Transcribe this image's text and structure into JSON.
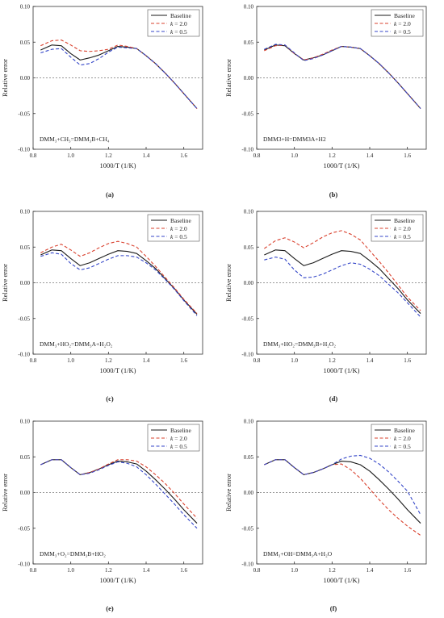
{
  "chart_data": [
    {
      "panel_label": "(a)",
      "type": "line",
      "annotation": "DMM₃+CH₃=DMM₃B+CH₄",
      "xlabel": "1000/T (1/K)",
      "ylabel": "Relative error",
      "xlim": [
        0.8,
        1.7
      ],
      "ylim": [
        -0.1,
        0.1
      ],
      "x_ticks": [
        "0.8",
        "1.0",
        "1.2",
        "1.4",
        "1.6"
      ],
      "y_ticks": [
        "-0.10",
        "-0.05",
        "0.00",
        "0.05",
        "0.10"
      ],
      "legend": "top-right",
      "zero_line": true,
      "series": [
        {
          "name": "Baseline",
          "color": "#1a1a1a",
          "dash": "solid",
          "x": [
            0.84,
            0.9,
            0.95,
            1.0,
            1.05,
            1.1,
            1.15,
            1.2,
            1.25,
            1.3,
            1.35,
            1.4,
            1.45,
            1.5,
            1.55,
            1.6,
            1.67
          ],
          "y": [
            0.039,
            0.046,
            0.045,
            0.034,
            0.025,
            0.028,
            0.032,
            0.038,
            0.044,
            0.043,
            0.041,
            0.031,
            0.02,
            0.007,
            -0.007,
            -0.022,
            -0.043
          ]
        },
        {
          "name": "k = 2.0",
          "color": "#d9412e",
          "dash": "dashed",
          "x": [
            0.84,
            0.9,
            0.95,
            1.0,
            1.05,
            1.1,
            1.15,
            1.2,
            1.25,
            1.3,
            1.35,
            1.4,
            1.45,
            1.5,
            1.55,
            1.6,
            1.67
          ],
          "y": [
            0.045,
            0.052,
            0.053,
            0.046,
            0.038,
            0.037,
            0.038,
            0.04,
            0.046,
            0.044,
            0.041,
            0.031,
            0.02,
            0.007,
            -0.007,
            -0.022,
            -0.043
          ]
        },
        {
          "name": "k = 0.5",
          "color": "#3446c8",
          "dash": "dashed",
          "x": [
            0.84,
            0.9,
            0.95,
            1.0,
            1.05,
            1.1,
            1.15,
            1.2,
            1.25,
            1.3,
            1.35,
            1.4,
            1.45,
            1.5,
            1.55,
            1.6,
            1.67
          ],
          "y": [
            0.035,
            0.04,
            0.041,
            0.029,
            0.018,
            0.02,
            0.027,
            0.036,
            0.043,
            0.042,
            0.041,
            0.031,
            0.02,
            0.007,
            -0.007,
            -0.022,
            -0.043
          ]
        }
      ]
    },
    {
      "panel_label": "(b)",
      "type": "line",
      "annotation": "DMM3+H=DMM3A+H2",
      "xlabel": "1000/T (1/K)",
      "ylabel": "Relative error",
      "xlim": [
        0.8,
        1.7
      ],
      "ylim": [
        -0.1,
        0.1
      ],
      "x_ticks": [
        "0.8",
        "1.0",
        "1.2",
        "1.4",
        "1.6"
      ],
      "y_ticks": [
        "-0.10",
        "-0.05",
        "0.00",
        "0.05",
        "0.10"
      ],
      "legend": "top-right",
      "zero_line": true,
      "series": [
        {
          "name": "Baseline",
          "color": "#1a1a1a",
          "dash": "solid",
          "x": [
            0.84,
            0.9,
            0.95,
            1.0,
            1.05,
            1.1,
            1.15,
            1.2,
            1.25,
            1.3,
            1.35,
            1.4,
            1.45,
            1.5,
            1.55,
            1.6,
            1.67
          ],
          "y": [
            0.039,
            0.046,
            0.045,
            0.034,
            0.025,
            0.028,
            0.032,
            0.038,
            0.044,
            0.043,
            0.041,
            0.031,
            0.02,
            0.007,
            -0.007,
            -0.022,
            -0.043
          ]
        },
        {
          "name": "k = 2.0",
          "color": "#d9412e",
          "dash": "dashed",
          "x": [
            0.84,
            0.9,
            0.95,
            1.0,
            1.05,
            1.1,
            1.15,
            1.2,
            1.25,
            1.3,
            1.35,
            1.4,
            1.45,
            1.5,
            1.55,
            1.6,
            1.67
          ],
          "y": [
            0.038,
            0.045,
            0.046,
            0.034,
            0.025,
            0.028,
            0.033,
            0.039,
            0.044,
            0.043,
            0.041,
            0.031,
            0.02,
            0.007,
            -0.007,
            -0.022,
            -0.043
          ]
        },
        {
          "name": "k = 0.5",
          "color": "#3446c8",
          "dash": "dashed",
          "x": [
            0.84,
            0.9,
            0.95,
            1.0,
            1.05,
            1.1,
            1.15,
            1.2,
            1.25,
            1.3,
            1.35,
            1.4,
            1.45,
            1.5,
            1.55,
            1.6,
            1.67
          ],
          "y": [
            0.04,
            0.047,
            0.046,
            0.035,
            0.024,
            0.027,
            0.032,
            0.038,
            0.044,
            0.043,
            0.041,
            0.031,
            0.02,
            0.007,
            -0.007,
            -0.022,
            -0.043
          ]
        }
      ]
    },
    {
      "panel_label": "(c)",
      "type": "line",
      "annotation": "DMM₃+HO₂=DMM₃A+H₂O₂",
      "xlabel": "1000/T (1/K)",
      "ylabel": "Relative error",
      "xlim": [
        0.8,
        1.7
      ],
      "ylim": [
        -0.1,
        0.1
      ],
      "x_ticks": [
        "0.8",
        "1.0",
        "1.2",
        "1.4",
        "1.6"
      ],
      "y_ticks": [
        "-0.10",
        "-0.05",
        "0.00",
        "0.05",
        "0.10"
      ],
      "legend": "top-right",
      "zero_line": true,
      "series": [
        {
          "name": "Baseline",
          "color": "#1a1a1a",
          "dash": "solid",
          "x": [
            0.84,
            0.9,
            0.95,
            1.0,
            1.05,
            1.1,
            1.15,
            1.2,
            1.25,
            1.3,
            1.35,
            1.4,
            1.45,
            1.5,
            1.55,
            1.6,
            1.67
          ],
          "y": [
            0.039,
            0.046,
            0.045,
            0.034,
            0.024,
            0.028,
            0.034,
            0.04,
            0.045,
            0.044,
            0.041,
            0.031,
            0.02,
            0.006,
            -0.008,
            -0.024,
            -0.044
          ]
        },
        {
          "name": "k = 2.0",
          "color": "#d9412e",
          "dash": "dashed",
          "x": [
            0.84,
            0.9,
            0.95,
            1.0,
            1.05,
            1.1,
            1.15,
            1.2,
            1.25,
            1.3,
            1.35,
            1.4,
            1.45,
            1.5,
            1.55,
            1.6,
            1.67
          ],
          "y": [
            0.042,
            0.05,
            0.054,
            0.046,
            0.037,
            0.042,
            0.049,
            0.055,
            0.058,
            0.055,
            0.05,
            0.037,
            0.023,
            0.008,
            -0.007,
            -0.023,
            -0.043
          ]
        },
        {
          "name": "k = 0.5",
          "color": "#3446c8",
          "dash": "dashed",
          "x": [
            0.84,
            0.9,
            0.95,
            1.0,
            1.05,
            1.1,
            1.15,
            1.2,
            1.25,
            1.3,
            1.35,
            1.4,
            1.45,
            1.5,
            1.55,
            1.6,
            1.67
          ],
          "y": [
            0.037,
            0.042,
            0.04,
            0.027,
            0.018,
            0.021,
            0.027,
            0.033,
            0.038,
            0.038,
            0.036,
            0.028,
            0.018,
            0.005,
            -0.009,
            -0.025,
            -0.046
          ]
        }
      ]
    },
    {
      "panel_label": "(d)",
      "type": "line",
      "annotation": "DMM₃+HO₂=DMM₃B+H₂O₂",
      "xlabel": "1000/T (1/K)",
      "ylabel": "Relative error",
      "xlim": [
        0.8,
        1.7
      ],
      "ylim": [
        -0.1,
        0.1
      ],
      "x_ticks": [
        "0.8",
        "1.0",
        "1.2",
        "1.4",
        "1.6"
      ],
      "y_ticks": [
        "-0.10",
        "-0.05",
        "0.00",
        "0.05",
        "0.10"
      ],
      "legend": "top-right",
      "zero_line": true,
      "series": [
        {
          "name": "Baseline",
          "color": "#1a1a1a",
          "dash": "solid",
          "x": [
            0.84,
            0.9,
            0.95,
            1.0,
            1.05,
            1.1,
            1.15,
            1.2,
            1.25,
            1.3,
            1.35,
            1.4,
            1.45,
            1.5,
            1.55,
            1.6,
            1.67
          ],
          "y": [
            0.039,
            0.046,
            0.045,
            0.034,
            0.024,
            0.028,
            0.034,
            0.04,
            0.045,
            0.044,
            0.041,
            0.031,
            0.02,
            0.006,
            -0.008,
            -0.024,
            -0.043
          ]
        },
        {
          "name": "k = 2.0",
          "color": "#d9412e",
          "dash": "dashed",
          "x": [
            0.84,
            0.9,
            0.95,
            1.0,
            1.05,
            1.1,
            1.15,
            1.2,
            1.25,
            1.3,
            1.35,
            1.4,
            1.45,
            1.5,
            1.55,
            1.6,
            1.67
          ],
          "y": [
            0.048,
            0.059,
            0.063,
            0.057,
            0.049,
            0.056,
            0.064,
            0.07,
            0.073,
            0.068,
            0.06,
            0.045,
            0.03,
            0.014,
            -0.003,
            -0.02,
            -0.039
          ]
        },
        {
          "name": "k = 0.5",
          "color": "#3446c8",
          "dash": "dashed",
          "x": [
            0.84,
            0.9,
            0.95,
            1.0,
            1.05,
            1.1,
            1.15,
            1.2,
            1.25,
            1.3,
            1.35,
            1.4,
            1.45,
            1.5,
            1.55,
            1.6,
            1.67
          ],
          "y": [
            0.032,
            0.036,
            0.033,
            0.018,
            0.007,
            0.008,
            0.012,
            0.018,
            0.024,
            0.028,
            0.026,
            0.019,
            0.01,
            -0.002,
            -0.014,
            -0.028,
            -0.048
          ]
        }
      ]
    },
    {
      "panel_label": "(e)",
      "type": "line",
      "annotation": "DMM₃+O₂=DMM₃B+HO₂",
      "xlabel": "1000/T (1/K)",
      "ylabel": "Relative error",
      "xlim": [
        0.8,
        1.7
      ],
      "ylim": [
        -0.1,
        0.1
      ],
      "x_ticks": [
        "0.8",
        "1.0",
        "1.2",
        "1.4",
        "1.6"
      ],
      "y_ticks": [
        "-0.10",
        "-0.05",
        "0.00",
        "0.05",
        "0.10"
      ],
      "legend": "top-right",
      "zero_line": true,
      "series": [
        {
          "name": "Baseline",
          "color": "#1a1a1a",
          "dash": "solid",
          "x": [
            0.84,
            0.9,
            0.95,
            1.0,
            1.05,
            1.1,
            1.15,
            1.2,
            1.25,
            1.3,
            1.35,
            1.4,
            1.45,
            1.5,
            1.55,
            1.6,
            1.67
          ],
          "y": [
            0.039,
            0.046,
            0.046,
            0.035,
            0.025,
            0.028,
            0.033,
            0.039,
            0.044,
            0.043,
            0.04,
            0.03,
            0.018,
            0.005,
            -0.009,
            -0.024,
            -0.043
          ]
        },
        {
          "name": "k = 2.0",
          "color": "#d9412e",
          "dash": "dashed",
          "x": [
            0.84,
            0.9,
            0.95,
            1.0,
            1.05,
            1.1,
            1.15,
            1.2,
            1.25,
            1.3,
            1.35,
            1.4,
            1.45,
            1.5,
            1.55,
            1.6,
            1.67
          ],
          "y": [
            0.039,
            0.046,
            0.046,
            0.035,
            0.025,
            0.028,
            0.033,
            0.04,
            0.046,
            0.046,
            0.044,
            0.036,
            0.025,
            0.013,
            -0.001,
            -0.016,
            -0.036
          ]
        },
        {
          "name": "k = 0.5",
          "color": "#3446c8",
          "dash": "dashed",
          "x": [
            0.84,
            0.9,
            0.95,
            1.0,
            1.05,
            1.1,
            1.15,
            1.2,
            1.25,
            1.3,
            1.35,
            1.4,
            1.45,
            1.5,
            1.55,
            1.6,
            1.67
          ],
          "y": [
            0.039,
            0.046,
            0.046,
            0.035,
            0.025,
            0.027,
            0.032,
            0.038,
            0.043,
            0.041,
            0.036,
            0.025,
            0.012,
            -0.002,
            -0.016,
            -0.031,
            -0.05
          ]
        }
      ]
    },
    {
      "panel_label": "(f)",
      "type": "line",
      "annotation": "DMM₃+OH=DMM₃A+H₂O",
      "xlabel": "1000/T (1/K)",
      "ylabel": "Relative error",
      "xlim": [
        0.8,
        1.7
      ],
      "ylim": [
        -0.1,
        0.1
      ],
      "x_ticks": [
        "0.8",
        "1.0",
        "1.2",
        "1.4",
        "1.6"
      ],
      "y_ticks": [
        "-0.10",
        "-0.05",
        "0.00",
        "0.05",
        "0.10"
      ],
      "legend": "top-right",
      "zero_line": true,
      "series": [
        {
          "name": "Baseline",
          "color": "#1a1a1a",
          "dash": "solid",
          "x": [
            0.84,
            0.9,
            0.95,
            1.0,
            1.05,
            1.1,
            1.15,
            1.2,
            1.25,
            1.3,
            1.35,
            1.4,
            1.45,
            1.5,
            1.55,
            1.6,
            1.67
          ],
          "y": [
            0.039,
            0.046,
            0.046,
            0.035,
            0.025,
            0.028,
            0.033,
            0.039,
            0.044,
            0.043,
            0.039,
            0.03,
            0.018,
            0.005,
            -0.009,
            -0.024,
            -0.043
          ]
        },
        {
          "name": "k = 2.0",
          "color": "#d9412e",
          "dash": "dashed",
          "x": [
            0.84,
            0.9,
            0.95,
            1.0,
            1.05,
            1.1,
            1.15,
            1.2,
            1.25,
            1.3,
            1.35,
            1.4,
            1.45,
            1.5,
            1.55,
            1.6,
            1.67
          ],
          "y": [
            0.039,
            0.046,
            0.046,
            0.035,
            0.025,
            0.028,
            0.033,
            0.039,
            0.04,
            0.032,
            0.02,
            0.005,
            -0.01,
            -0.024,
            -0.036,
            -0.047,
            -0.06
          ]
        },
        {
          "name": "k = 0.5",
          "color": "#3446c8",
          "dash": "dashed",
          "x": [
            0.84,
            0.9,
            0.95,
            1.0,
            1.05,
            1.1,
            1.15,
            1.2,
            1.25,
            1.3,
            1.35,
            1.4,
            1.45,
            1.5,
            1.55,
            1.6,
            1.67
          ],
          "y": [
            0.039,
            0.046,
            0.046,
            0.035,
            0.025,
            0.028,
            0.033,
            0.039,
            0.047,
            0.051,
            0.052,
            0.048,
            0.04,
            0.029,
            0.016,
            0.002,
            -0.031
          ]
        }
      ]
    }
  ]
}
